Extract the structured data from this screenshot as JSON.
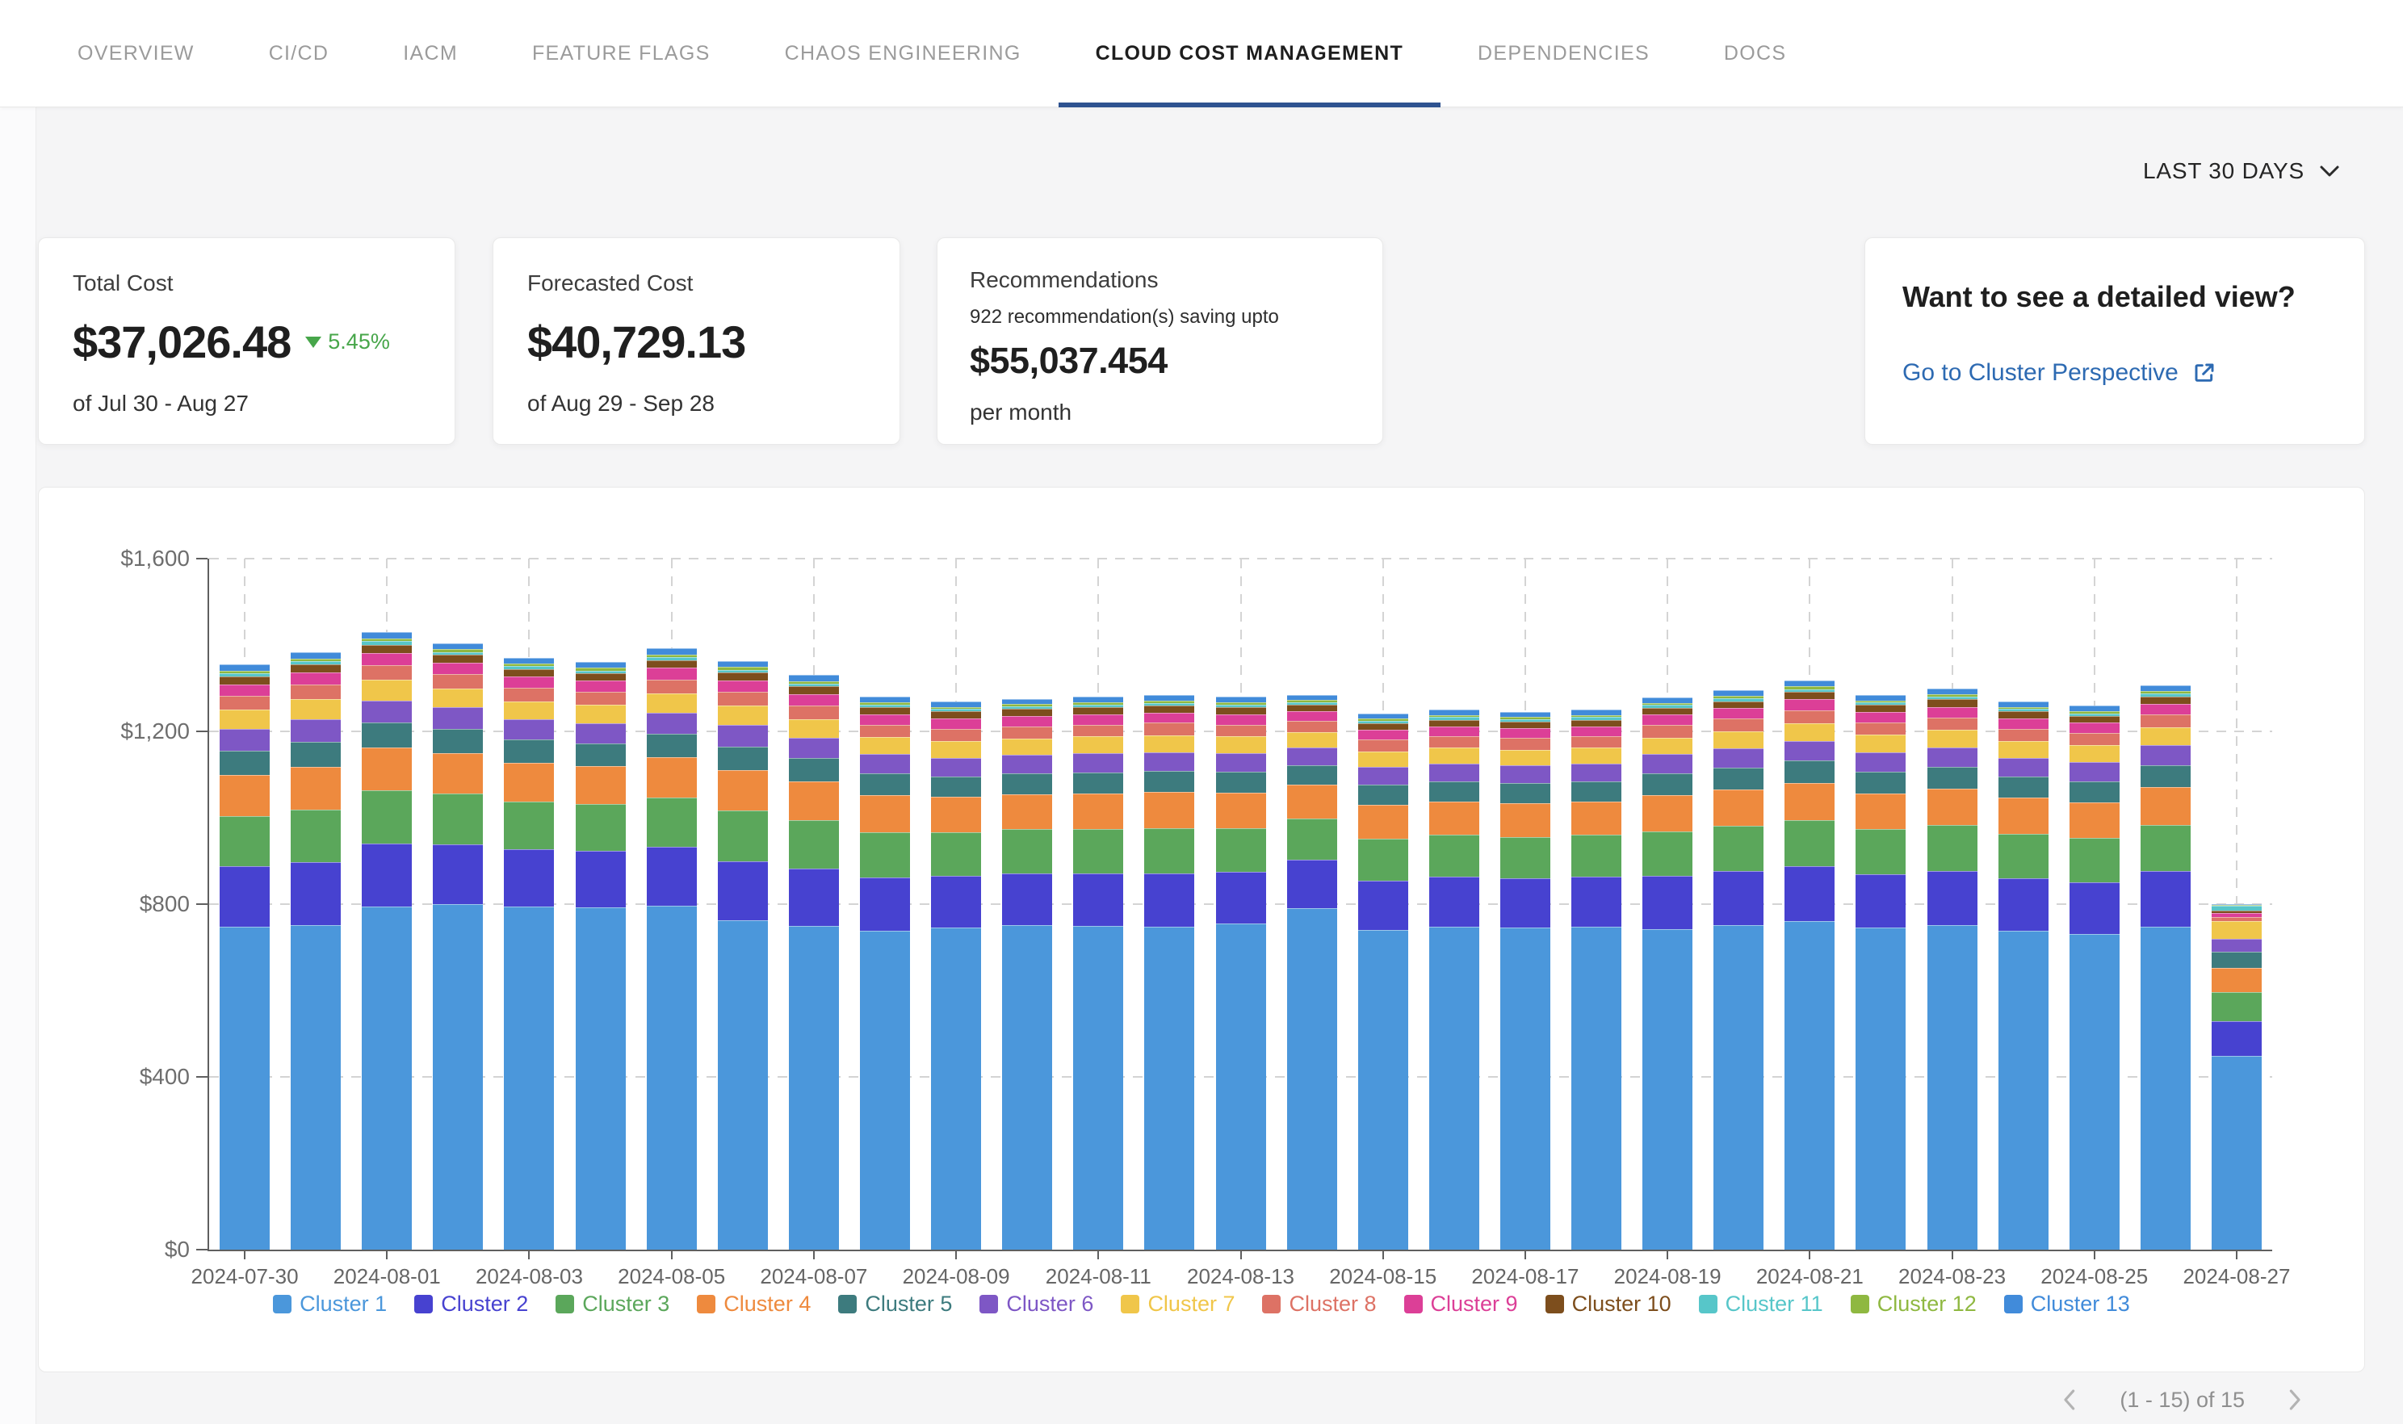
{
  "nav": {
    "tabs": [
      {
        "label": "OVERVIEW",
        "active": false
      },
      {
        "label": "CI/CD",
        "active": false
      },
      {
        "label": "IACM",
        "active": false
      },
      {
        "label": "FEATURE FLAGS",
        "active": false
      },
      {
        "label": "CHAOS ENGINEERING",
        "active": false
      },
      {
        "label": "CLOUD COST MANAGEMENT",
        "active": true
      },
      {
        "label": "DEPENDENCIES",
        "active": false
      },
      {
        "label": "DOCS",
        "active": false
      }
    ]
  },
  "toolbar": {
    "time_range": "LAST 30 DAYS"
  },
  "cards": {
    "total_cost": {
      "title": "Total Cost",
      "value": "$37,026.48",
      "delta": "5.45%",
      "period": "of Jul 30 - Aug 27"
    },
    "forecasted_cost": {
      "title": "Forecasted Cost",
      "value": "$40,729.13",
      "period": "of Aug 29 - Sep 28"
    },
    "recommendations": {
      "title": "Recommendations",
      "subtitle": "922 recommendation(s) saving upto",
      "value": "$55,037.454",
      "period": "per month"
    },
    "detail": {
      "title": "Want to see a detailed view?",
      "link_label": "Go to Cluster Perspective"
    }
  },
  "pagination": {
    "label": "(1 - 15) of 15"
  },
  "colors": {
    "active_tab_underline": "#2e5290",
    "link_blue": "#2d6ab2",
    "delta_green": "#47a64a"
  },
  "chart_data": {
    "type": "bar",
    "stacked": true,
    "grid": "dashed",
    "legend_position": "bottom",
    "ylim": [
      0,
      1600
    ],
    "yticks": [
      {
        "value": 0,
        "label": "$0"
      },
      {
        "value": 400,
        "label": "$400"
      },
      {
        "value": 800,
        "label": "$800"
      },
      {
        "value": 1200,
        "label": "$1,200"
      },
      {
        "value": 1600,
        "label": "$1,600"
      }
    ],
    "x_label_every": 2,
    "categories": [
      "2024-07-30",
      "2024-07-31",
      "2024-08-01",
      "2024-08-02",
      "2024-08-03",
      "2024-08-04",
      "2024-08-05",
      "2024-08-06",
      "2024-08-07",
      "2024-08-08",
      "2024-08-09",
      "2024-08-10",
      "2024-08-11",
      "2024-08-12",
      "2024-08-13",
      "2024-08-14",
      "2024-08-15",
      "2024-08-16",
      "2024-08-17",
      "2024-08-18",
      "2024-08-19",
      "2024-08-20",
      "2024-08-21",
      "2024-08-22",
      "2024-08-23",
      "2024-08-24",
      "2024-08-25",
      "2024-08-26",
      "2024-08-27"
    ],
    "series": [
      {
        "name": "Cluster 1",
        "color": "#4b97db",
        "values": [
          748,
          752,
          795,
          800,
          795,
          793,
          797,
          762,
          750,
          738,
          745,
          752,
          750,
          748,
          755,
          790,
          740,
          748,
          745,
          748,
          742,
          752,
          760,
          745,
          752,
          738,
          730,
          748,
          448
        ]
      },
      {
        "name": "Cluster 2",
        "color": "#4742d0",
        "values": [
          139,
          145,
          145,
          139,
          132,
          130,
          136,
          138,
          133,
          124,
          120,
          120,
          121,
          123,
          120,
          113,
          115,
          115,
          114,
          115,
          123,
          124,
          127,
          124,
          125,
          122,
          121,
          128,
          81
        ]
      },
      {
        "name": "Cluster 3",
        "color": "#5ba75b",
        "values": [
          117,
          122,
          123,
          117,
          111,
          109,
          114,
          116,
          112,
          105,
          101,
          101,
          102,
          104,
          101,
          96,
          97,
          97,
          97,
          97,
          104,
          105,
          107,
          104,
          106,
          103,
          102,
          108,
          68
        ]
      },
      {
        "name": "Cluster 4",
        "color": "#ee8a3e",
        "values": [
          95,
          99,
          99,
          94,
          90,
          88,
          93,
          94,
          90,
          85,
          82,
          82,
          83,
          84,
          82,
          77,
          78,
          78,
          78,
          78,
          84,
          85,
          87,
          84,
          85,
          83,
          83,
          87,
          55
        ]
      },
      {
        "name": "Cluster 5",
        "color": "#3d7b7e",
        "values": [
          56,
          58,
          58,
          56,
          53,
          52,
          55,
          55,
          53,
          50,
          48,
          48,
          49,
          49,
          48,
          46,
          46,
          46,
          46,
          46,
          50,
          50,
          51,
          50,
          50,
          49,
          49,
          51,
          38
        ]
      },
      {
        "name": "Cluster 6",
        "color": "#7e57c5",
        "values": [
          50,
          52,
          52,
          50,
          47,
          47,
          49,
          50,
          48,
          45,
          43,
          43,
          44,
          44,
          43,
          41,
          41,
          41,
          41,
          41,
          44,
          45,
          46,
          45,
          45,
          44,
          44,
          46,
          30
        ]
      },
      {
        "name": "Cluster 7",
        "color": "#f0c64a",
        "values": [
          45,
          46,
          47,
          44,
          42,
          42,
          44,
          44,
          43,
          40,
          39,
          38,
          39,
          39,
          39,
          36,
          37,
          37,
          37,
          37,
          39,
          40,
          41,
          40,
          40,
          39,
          39,
          41,
          40
        ]
      },
      {
        "name": "Cluster 8",
        "color": "#dd7265",
        "values": [
          32,
          34,
          34,
          32,
          31,
          30,
          32,
          32,
          31,
          29,
          28,
          28,
          28,
          29,
          28,
          26,
          27,
          27,
          27,
          27,
          29,
          29,
          30,
          29,
          29,
          28,
          28,
          30,
          10
        ]
      },
      {
        "name": "Cluster 9",
        "color": "#dc3f97",
        "values": [
          27,
          28,
          29,
          27,
          26,
          26,
          27,
          27,
          26,
          24,
          24,
          24,
          24,
          24,
          24,
          22,
          23,
          23,
          22,
          23,
          24,
          24,
          25,
          24,
          25,
          24,
          24,
          25,
          10
        ]
      },
      {
        "name": "Cluster 10",
        "color": "#7d4e1d",
        "values": [
          18,
          19,
          19,
          18,
          17,
          17,
          18,
          18,
          18,
          16,
          16,
          16,
          16,
          16,
          16,
          15,
          15,
          15,
          15,
          15,
          16,
          16,
          17,
          16,
          17,
          16,
          16,
          17,
          6
        ]
      },
      {
        "name": "Cluster 11",
        "color": "#57c6c9",
        "values": [
          7,
          8,
          8,
          7,
          7,
          7,
          7,
          7,
          7,
          6,
          6,
          6,
          6,
          6,
          6,
          6,
          6,
          6,
          6,
          6,
          6,
          7,
          7,
          6,
          7,
          6,
          6,
          7,
          10
        ]
      },
      {
        "name": "Cluster 12",
        "color": "#8fb841",
        "values": [
          6,
          6,
          6,
          6,
          6,
          6,
          6,
          6,
          6,
          5,
          5,
          5,
          5,
          5,
          5,
          5,
          5,
          5,
          5,
          5,
          5,
          5,
          6,
          5,
          5,
          5,
          5,
          6,
          2
        ]
      },
      {
        "name": "Cluster 13",
        "color": "#418bda",
        "values": [
          15,
          15,
          15,
          14,
          14,
          14,
          14,
          14,
          14,
          13,
          13,
          12,
          13,
          13,
          13,
          12,
          12,
          12,
          12,
          12,
          13,
          13,
          13,
          13,
          13,
          13,
          13,
          13,
          2
        ]
      }
    ]
  }
}
